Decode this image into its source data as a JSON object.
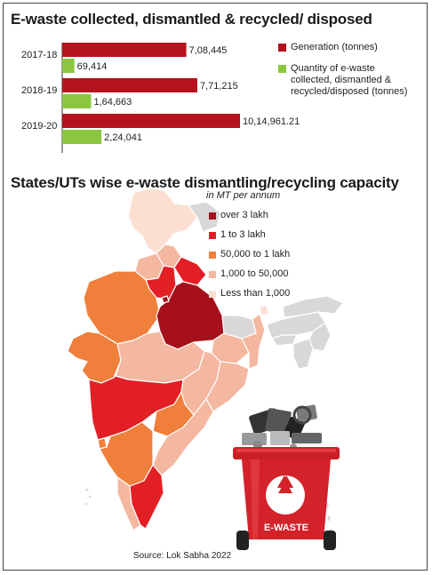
{
  "title_top": "E-waste collected, dismantled & recycled/ disposed",
  "title_map": "States/UTs wise e-waste dismantling/recycling capacity",
  "source": "Source: Lok Sabha 2022",
  "colors": {
    "generation": "#b5121b",
    "collected": "#8cc63f",
    "over_3_lakh": "#a5101a",
    "one_to_3_lakh": "#e31f26",
    "fifty_k_to_1_lakh": "#f07f3c",
    "one_k_to_50k": "#f4b7a0",
    "less_than_1k": "#fbe0d2",
    "no_data": "#d8d8d8"
  },
  "chart_data": {
    "type": "bar",
    "orientation": "horizontal",
    "title": "E-waste collected, dismantled & recycled/ disposed",
    "categories": [
      "2017-18",
      "2018-19",
      "2019-20"
    ],
    "series": [
      {
        "name": "Generation (tonnes)",
        "values": [
          708445,
          771215,
          1014961.21
        ],
        "labels": [
          "7,08,445",
          "7,71,215",
          "10,14,961.21"
        ]
      },
      {
        "name": "Quantity of e-waste collected, dismantled & recycled/disposed (tonnes)",
        "values": [
          69414,
          164663,
          224041
        ],
        "labels": [
          "69,414",
          "1,64,663",
          "2,24,041"
        ]
      }
    ],
    "legend_position": "right"
  },
  "map": {
    "unit_label": "in MT per annum",
    "legend": [
      {
        "label": "over 3 lakh",
        "color_key": "over_3_lakh"
      },
      {
        "label": "1 to 3 lakh",
        "color_key": "one_to_3_lakh"
      },
      {
        "label": "50,000 to 1 lakh",
        "color_key": "fifty_k_to_1_lakh"
      },
      {
        "label": "1,000 to 50,000",
        "color_key": "one_k_to_50k"
      },
      {
        "label": "Less than 1,000",
        "color_key": "less_than_1k"
      }
    ],
    "bin_label": "E-WASTE"
  }
}
